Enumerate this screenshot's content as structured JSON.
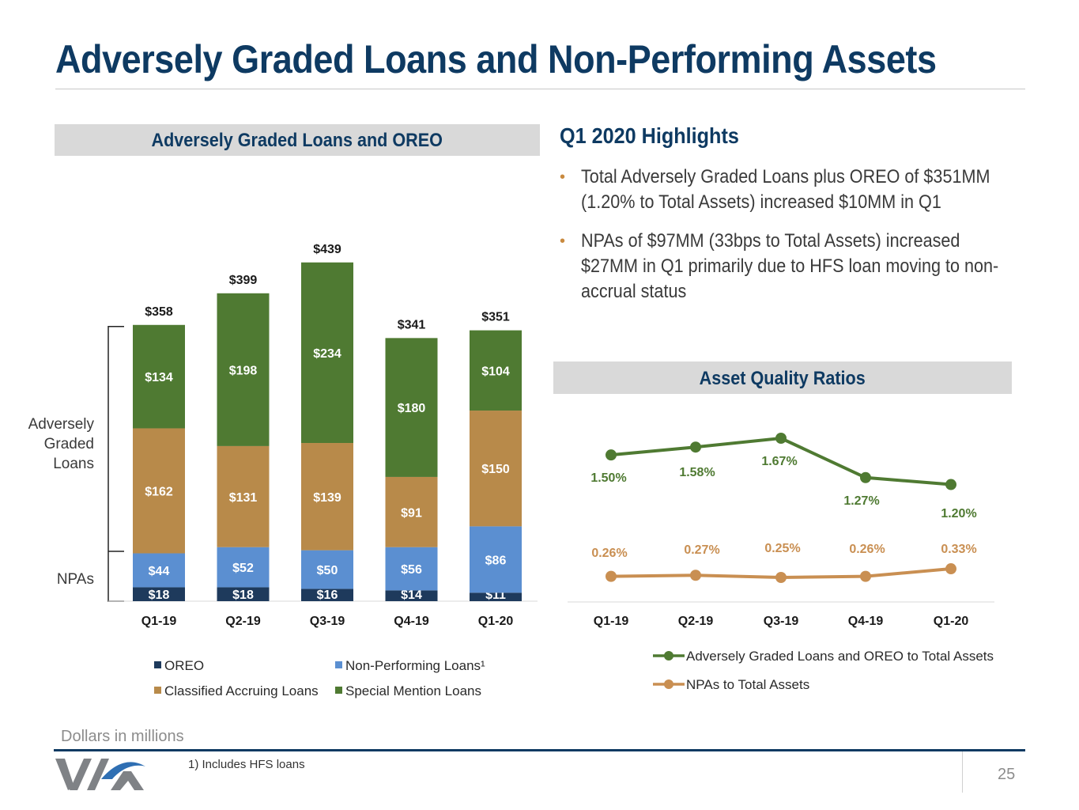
{
  "page": {
    "title": "Adversely Graded Loans and Non-Performing Assets",
    "page_number": "25",
    "units_note": "Dollars in millions",
    "footnote": "1) Includes HFS loans"
  },
  "left_panel": {
    "header": "Adversely Graded Loans and OREO"
  },
  "highlights": {
    "title": "Q1 2020 Highlights",
    "bullets": [
      "Total Adversely Graded Loans plus OREO of $351MM (1.20% to Total Assets) increased $10MM in Q1",
      "NPAs of $97MM (33bps to Total Assets) increased $27MM in Q1 primarily due to HFS loan moving to non-accrual status"
    ]
  },
  "right_panel": {
    "header": "Asset Quality Ratios"
  },
  "colors": {
    "navy": "#0e3a62",
    "oreo": "#1e3a5c",
    "npl": "#5b8fd1",
    "classified": "#b88a4a",
    "special": "#4f7a32",
    "npa_line": "#c98f52",
    "agl_line": "#4f7a32"
  },
  "chart_data": [
    {
      "type": "bar",
      "stacked": true,
      "title": "Adversely Graded Loans and OREO",
      "categories": [
        "Q1-19",
        "Q2-19",
        "Q3-19",
        "Q4-19",
        "Q1-20"
      ],
      "series": [
        {
          "name": "OREO",
          "values": [
            18,
            18,
            16,
            14,
            11
          ],
          "labels": [
            "$18",
            "$18",
            "$16",
            "$14",
            "$11"
          ]
        },
        {
          "name": "Non-Performing Loans¹",
          "values": [
            44,
            52,
            50,
            56,
            86
          ],
          "labels": [
            "$44",
            "$52",
            "$50",
            "$56",
            "$86"
          ]
        },
        {
          "name": "Classified Accruing Loans",
          "values": [
            162,
            131,
            139,
            91,
            150
          ],
          "labels": [
            "$162",
            "$131",
            "$139",
            "$91",
            "$150"
          ]
        },
        {
          "name": "Special Mention Loans",
          "values": [
            134,
            198,
            234,
            180,
            104
          ],
          "labels": [
            "$134",
            "$198",
            "$234",
            "$180",
            "$104"
          ]
        }
      ],
      "totals": [
        358,
        399,
        439,
        341,
        351
      ],
      "total_labels": [
        "$358",
        "$399",
        "$439",
        "$341",
        "$351"
      ],
      "bracket_labels": {
        "adversely_graded": "Adversely Graded Loans",
        "npas": "NPAs"
      },
      "legend": "bottom",
      "ylim": [
        0,
        500
      ]
    },
    {
      "type": "line",
      "title": "Asset Quality Ratios",
      "categories": [
        "Q1-19",
        "Q2-19",
        "Q3-19",
        "Q4-19",
        "Q1-20"
      ],
      "series": [
        {
          "name": "Adversely Graded Loans and OREO to Total Assets",
          "values": [
            1.5,
            1.58,
            1.67,
            1.27,
            1.2
          ],
          "labels": [
            "1.50%",
            "1.58%",
            "1.67%",
            "1.27%",
            "1.20%"
          ]
        },
        {
          "name": "NPAs to Total Assets",
          "values": [
            0.26,
            0.27,
            0.25,
            0.26,
            0.33
          ],
          "labels": [
            "0.26%",
            "0.27%",
            "0.25%",
            "0.26%",
            "0.33%"
          ]
        }
      ],
      "legend": "bottom-right"
    }
  ]
}
